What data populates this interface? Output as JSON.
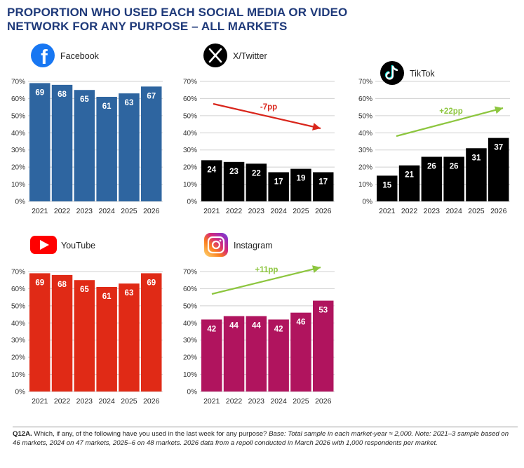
{
  "title_lines": [
    "PROPORTION WHO USED EACH SOCIAL MEDIA OR VIDEO",
    "NETWORK FOR ANY PURPOSE – ALL MARKETS"
  ],
  "footnote": {
    "code": "Q12A.",
    "question": " Which, if any, of the following have you used in the last week for any purpose? ",
    "base": "Base: Total sample in each market-year ≈ 2,000. Note: 2021–3 sample based on 46 markets, 2024 on 47 markets, 2025–6 on 48 markets. 2026 data from a repoll conducted in March 2026 with 1,000 respondents per market."
  },
  "chart_data": [
    {
      "type": "bar",
      "name": "Facebook",
      "icon": "facebook-icon",
      "color": "#2e65a0",
      "brand_color": "#1877f2",
      "categories": [
        "2021",
        "2022",
        "2023",
        "2024",
        "2025",
        "2026"
      ],
      "values": [
        69,
        68,
        65,
        61,
        63,
        67
      ],
      "ylim": [
        0,
        70
      ],
      "yticks": [
        "0%",
        "10%",
        "20%",
        "30%",
        "40%",
        "50%",
        "60%",
        "70%"
      ],
      "grid": true,
      "annotation": null
    },
    {
      "type": "bar",
      "name": "X/Twitter",
      "icon": "x-icon",
      "color": "#000000",
      "brand_color": "#000000",
      "categories": [
        "2021",
        "2022",
        "2023",
        "2024",
        "2025",
        "2026"
      ],
      "values": [
        24,
        23,
        22,
        17,
        19,
        17
      ],
      "ylim": [
        0,
        70
      ],
      "yticks": [
        "0%",
        "10%",
        "20%",
        "30%",
        "40%",
        "50%",
        "60%",
        "70%"
      ],
      "grid": true,
      "annotation": {
        "text": "-7pp",
        "direction": "down",
        "color": "#d9261c"
      }
    },
    {
      "type": "bar",
      "name": "TikTok",
      "icon": "tiktok-icon",
      "color": "#000000",
      "brand_color": "#000000",
      "categories": [
        "2021",
        "2022",
        "2023",
        "2024",
        "2025",
        "2026"
      ],
      "values": [
        15,
        21,
        26,
        26,
        31,
        37
      ],
      "ylim": [
        0,
        70
      ],
      "yticks": [
        "0%",
        "10%",
        "20%",
        "30%",
        "40%",
        "50%",
        "60%",
        "70%"
      ],
      "grid": true,
      "annotation": {
        "text": "+22pp",
        "direction": "up",
        "color": "#8dc63f"
      }
    },
    {
      "type": "bar",
      "name": "YouTube",
      "icon": "youtube-icon",
      "color": "#e02a16",
      "brand_color": "#ff0000",
      "categories": [
        "2021",
        "2022",
        "2023",
        "2024",
        "2025",
        "2026"
      ],
      "values": [
        69,
        68,
        65,
        61,
        63,
        69
      ],
      "ylim": [
        0,
        70
      ],
      "yticks": [
        "0%",
        "10%",
        "20%",
        "30%",
        "40%",
        "50%",
        "60%",
        "70%"
      ],
      "grid": true,
      "annotation": null
    },
    {
      "type": "bar",
      "name": "Instagram",
      "icon": "instagram-icon",
      "color": "#b0145e",
      "brand_color": "#c13584",
      "categories": [
        "2021",
        "2022",
        "2023",
        "2024",
        "2025",
        "2026"
      ],
      "values": [
        42,
        44,
        44,
        42,
        46,
        53
      ],
      "ylim": [
        0,
        70
      ],
      "yticks": [
        "0%",
        "10%",
        "20%",
        "30%",
        "40%",
        "50%",
        "60%",
        "70%"
      ],
      "grid": true,
      "annotation": {
        "text": "+11pp",
        "direction": "up",
        "color": "#8dc63f"
      }
    }
  ]
}
